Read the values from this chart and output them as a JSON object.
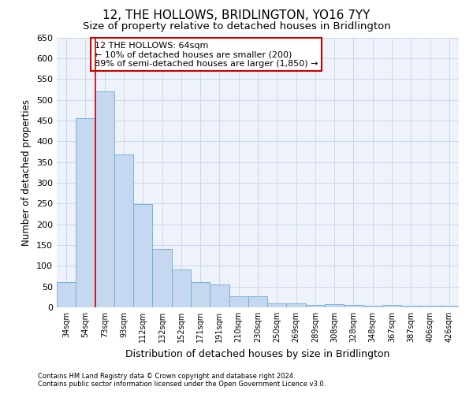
{
  "title": "12, THE HOLLOWS, BRIDLINGTON, YO16 7YY",
  "subtitle": "Size of property relative to detached houses in Bridlington",
  "xlabel": "Distribution of detached houses by size in Bridlington",
  "ylabel": "Number of detached properties",
  "categories": [
    "34sqm",
    "54sqm",
    "73sqm",
    "93sqm",
    "112sqm",
    "132sqm",
    "152sqm",
    "171sqm",
    "191sqm",
    "210sqm",
    "230sqm",
    "250sqm",
    "269sqm",
    "289sqm",
    "308sqm",
    "328sqm",
    "348sqm",
    "367sqm",
    "387sqm",
    "406sqm",
    "426sqm"
  ],
  "values": [
    60,
    455,
    520,
    368,
    248,
    140,
    92,
    60,
    55,
    27,
    27,
    10,
    10,
    5,
    8,
    5,
    3,
    5,
    3,
    3,
    3
  ],
  "bar_color": "#c5d8f0",
  "bar_edge_color": "#6baad8",
  "vline_x_index": 1.5,
  "vline_color": "#cc0000",
  "annotation_box_text": "12 THE HOLLOWS: 64sqm\n← 10% of detached houses are smaller (200)\n89% of semi-detached houses are larger (1,850) →",
  "annotation_box_color": "#cc0000",
  "annotation_box_facecolor": "white",
  "ylim": [
    0,
    650
  ],
  "yticks": [
    0,
    50,
    100,
    150,
    200,
    250,
    300,
    350,
    400,
    450,
    500,
    550,
    600,
    650
  ],
  "footer_line1": "Contains HM Land Registry data © Crown copyright and database right 2024.",
  "footer_line2": "Contains public sector information licensed under the Open Government Licence v3.0.",
  "background_color": "#ffffff",
  "plot_background_color": "#eef2fa",
  "grid_color": "#c8d4e8",
  "title_fontsize": 11,
  "subtitle_fontsize": 9.5,
  "xlabel_fontsize": 9,
  "ylabel_fontsize": 8.5
}
